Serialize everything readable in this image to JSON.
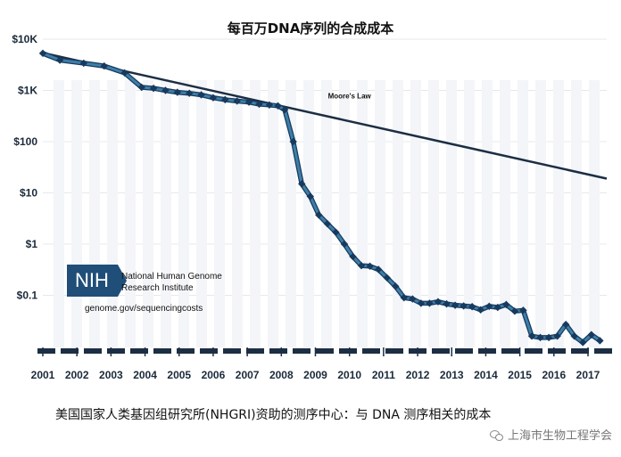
{
  "chart_data": {
    "type": "line",
    "title": "每百万DNA序列的合成成本",
    "y_scale": "log",
    "ylim": [
      0.01,
      10000
    ],
    "y_ticks": [
      "$10K",
      "$1K",
      "$100",
      "$10",
      "$1",
      "$0.1"
    ],
    "x_ticks": [
      "2001",
      "2002",
      "2003",
      "2004",
      "2005",
      "2006",
      "2007",
      "2008",
      "2009",
      "2010",
      "2011",
      "2012",
      "2013",
      "2014",
      "2015",
      "2016",
      "2017"
    ],
    "xlim": [
      2001,
      2017.55
    ],
    "grid": true,
    "series": [
      {
        "name": "Moore's Law",
        "color": "#1c2e44",
        "points": [
          [
            2001.0,
            5400
          ],
          [
            2017.55,
            19
          ]
        ]
      },
      {
        "name": "",
        "color": "#3d7fa8",
        "marker_color": "#173a5e",
        "points": [
          [
            2001.0,
            5300
          ],
          [
            2001.5,
            3900
          ],
          [
            2002.2,
            3400
          ],
          [
            2002.8,
            3000
          ],
          [
            2003.4,
            2200
          ],
          [
            2003.9,
            1150
          ],
          [
            2004.25,
            1100
          ],
          [
            2004.6,
            1000
          ],
          [
            2004.95,
            920
          ],
          [
            2005.3,
            880
          ],
          [
            2005.65,
            820
          ],
          [
            2006.0,
            720
          ],
          [
            2006.35,
            660
          ],
          [
            2006.7,
            620
          ],
          [
            2007.05,
            590
          ],
          [
            2007.35,
            540
          ],
          [
            2007.65,
            520
          ],
          [
            2007.9,
            500
          ],
          [
            2008.1,
            420
          ],
          [
            2008.35,
            100
          ],
          [
            2008.6,
            15
          ],
          [
            2008.85,
            8.5
          ],
          [
            2009.1,
            3.7
          ],
          [
            2009.35,
            2.5
          ],
          [
            2009.6,
            1.7
          ],
          [
            2009.85,
            1.0
          ],
          [
            2010.1,
            0.57
          ],
          [
            2010.35,
            0.38
          ],
          [
            2010.6,
            0.37
          ],
          [
            2010.85,
            0.32
          ],
          [
            2011.1,
            0.22
          ],
          [
            2011.35,
            0.15
          ],
          [
            2011.6,
            0.09
          ],
          [
            2011.85,
            0.085
          ],
          [
            2012.1,
            0.07
          ],
          [
            2012.35,
            0.07
          ],
          [
            2012.6,
            0.075
          ],
          [
            2012.85,
            0.068
          ],
          [
            2013.1,
            0.064
          ],
          [
            2013.35,
            0.062
          ],
          [
            2013.6,
            0.06
          ],
          [
            2013.85,
            0.052
          ],
          [
            2014.1,
            0.061
          ],
          [
            2014.35,
            0.058
          ],
          [
            2014.6,
            0.066
          ],
          [
            2014.85,
            0.049
          ],
          [
            2015.1,
            0.051
          ],
          [
            2015.35,
            0.016
          ],
          [
            2015.6,
            0.015
          ],
          [
            2015.85,
            0.015
          ],
          [
            2016.1,
            0.016
          ],
          [
            2016.35,
            0.027
          ],
          [
            2016.6,
            0.016
          ],
          [
            2016.85,
            0.012
          ],
          [
            2017.1,
            0.017
          ],
          [
            2017.35,
            0.013
          ]
        ]
      }
    ],
    "annotations": {
      "moore_label": "Moore's Law",
      "nih_logo_text": "NIH",
      "nih_line1": "National Human Genome",
      "nih_line2": "Research Institute",
      "nih_url": "genome.gov/sequencingcosts"
    }
  },
  "caption": "美国国家人类基因组研究所(NHGRI)资助的测序中心：与 DNA 测序相关的成本",
  "watermark": {
    "icon": "wechat-icon",
    "text": "上海市生物工程学会"
  }
}
